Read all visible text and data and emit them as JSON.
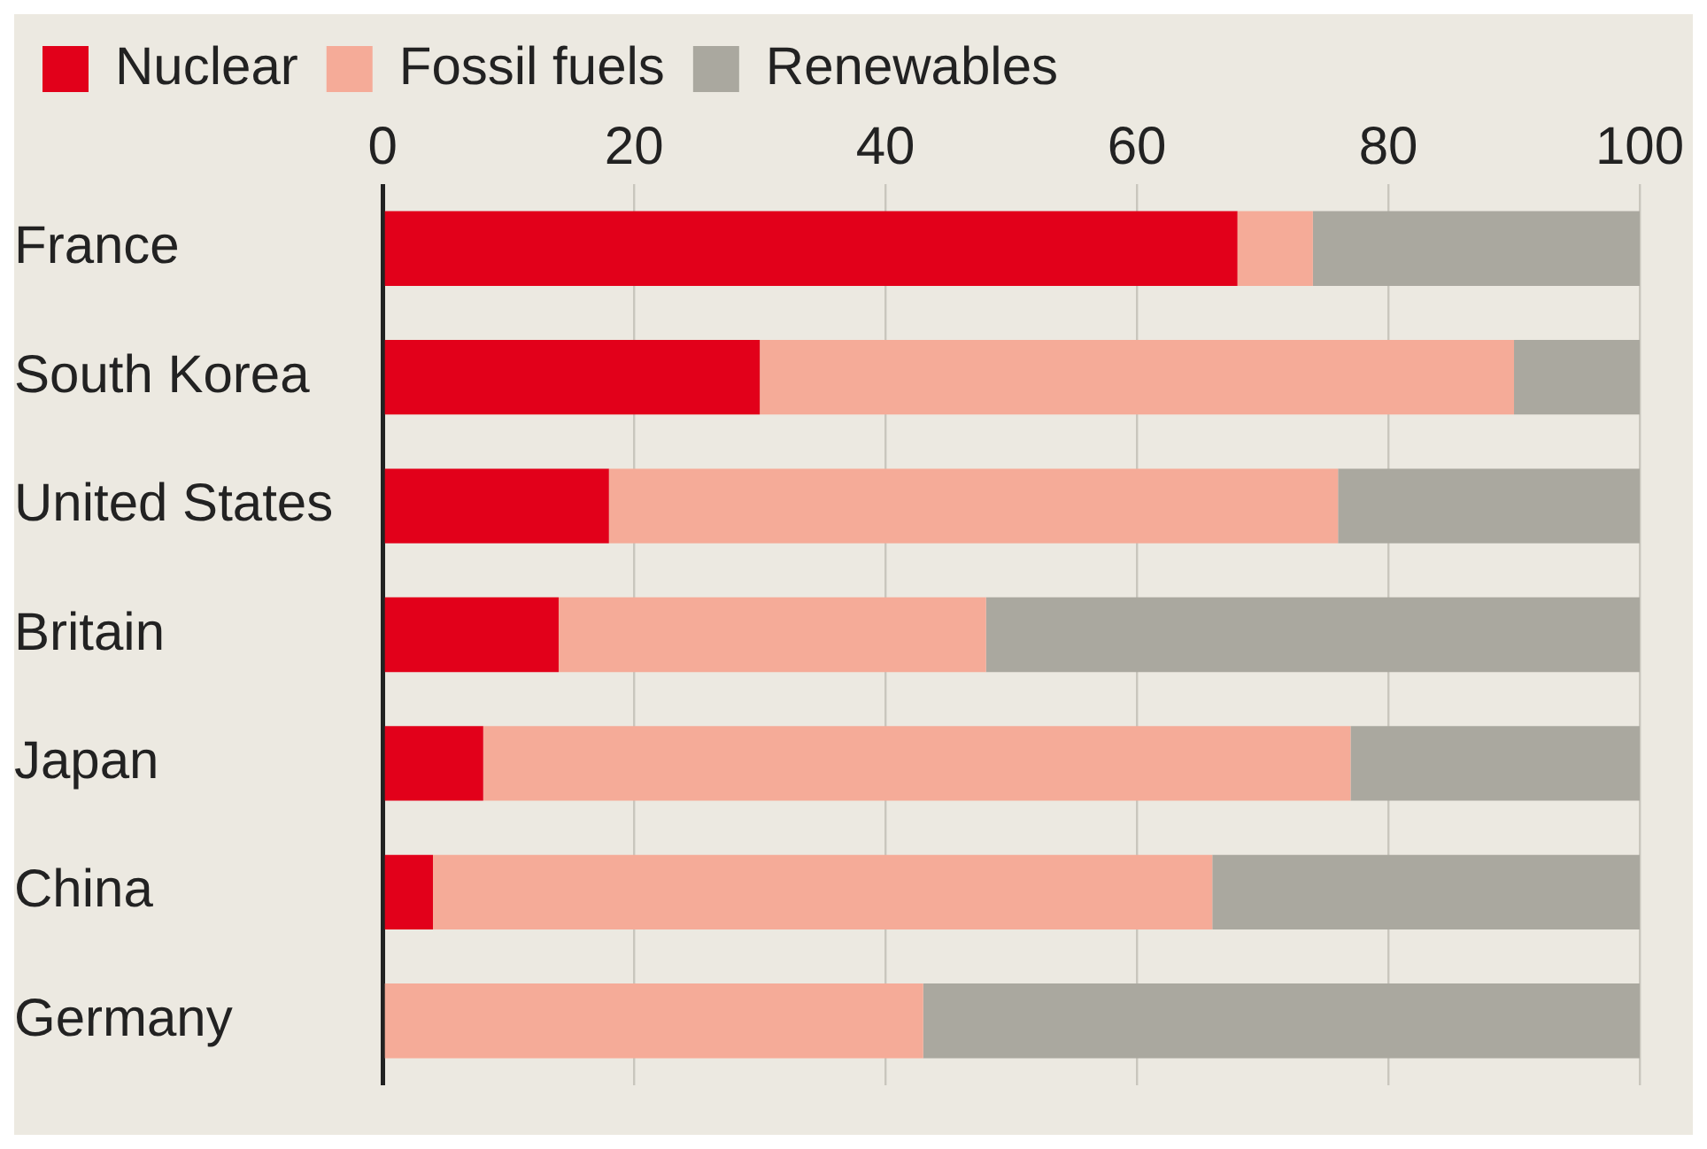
{
  "chart_data": {
    "type": "bar",
    "orientation": "horizontal",
    "stacked": true,
    "categories": [
      "France",
      "South Korea",
      "United States",
      "Britain",
      "Japan",
      "China",
      "Germany"
    ],
    "series": [
      {
        "name": "Nuclear",
        "color": "#e2001a",
        "values": [
          68,
          30,
          18,
          14,
          8,
          4,
          0
        ]
      },
      {
        "name": "Fossil fuels",
        "color": "#f5ab98",
        "values": [
          6,
          60,
          58,
          34,
          69,
          62,
          43
        ]
      },
      {
        "name": "Renewables",
        "color": "#aaa89f",
        "values": [
          26,
          10,
          24,
          52,
          23,
          34,
          57
        ]
      }
    ],
    "xlim": [
      0,
      100
    ],
    "xticks": [
      0,
      20,
      40,
      60,
      80,
      100
    ],
    "grid": "x",
    "legend": "top left"
  }
}
